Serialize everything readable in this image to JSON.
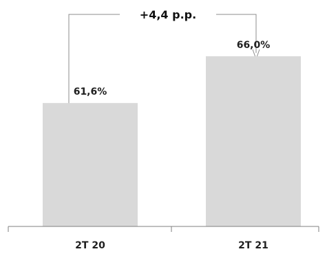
{
  "chart_data": {
    "type": "bar",
    "categories": [
      "2T 20",
      "2T 21"
    ],
    "values": [
      61.6,
      66.0
    ],
    "value_labels": [
      "61,6%",
      "66,0%"
    ],
    "title": "",
    "xlabel": "",
    "ylabel": "",
    "ylim": [
      50,
      70
    ],
    "grid": false,
    "legend": "none",
    "annotation": {
      "text": "+4,4 p.p.",
      "from": "2T 20",
      "to": "2T 21"
    },
    "colors": {
      "bar": "#d9d9d9",
      "axis": "#7f7f7f",
      "bracket": "#8c8c8c",
      "text": "#1f1f1f"
    }
  }
}
